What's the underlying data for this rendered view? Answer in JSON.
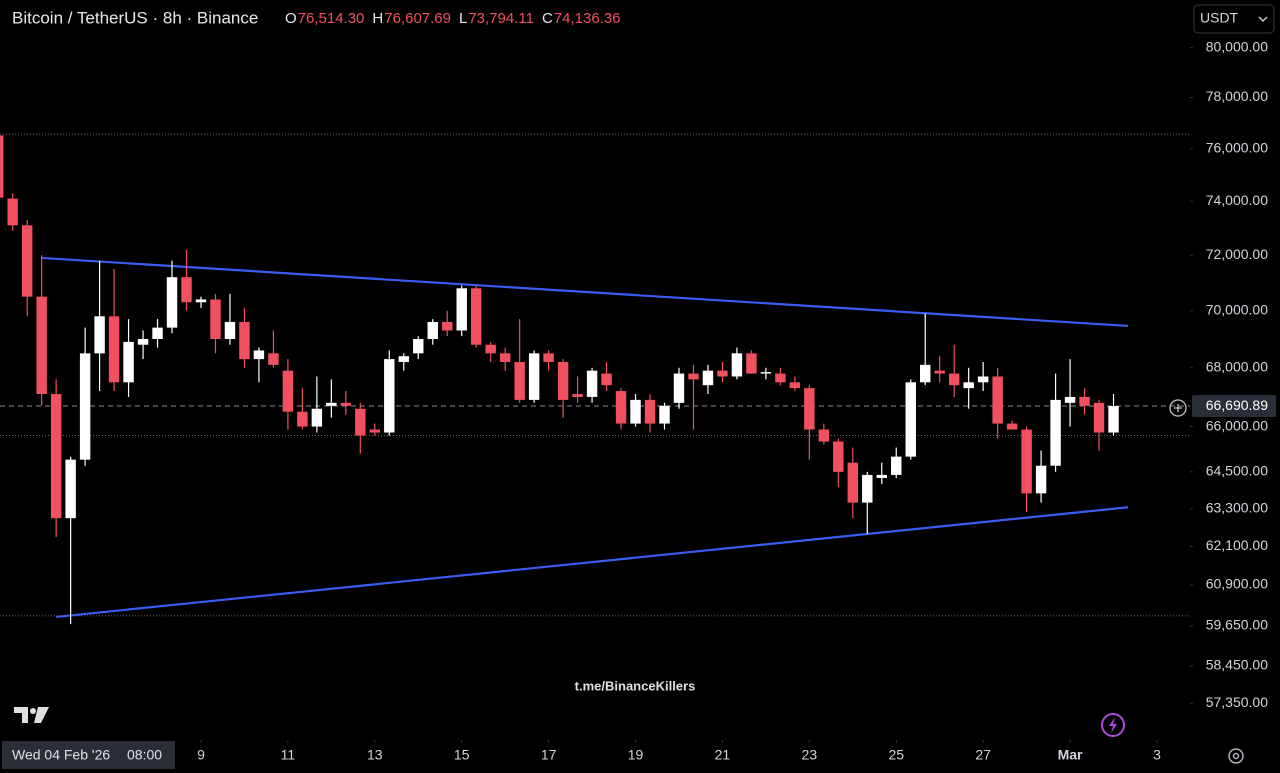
{
  "chart_data": {
    "type": "candlestick",
    "title": "Bitcoin / TetherUS · 8h · Binance",
    "ohlc_header": [
      {
        "label": "O",
        "value": "76,514.30"
      },
      {
        "label": "H",
        "value": "76,607.69"
      },
      {
        "label": "L",
        "value": "73,794.11"
      },
      {
        "label": "C",
        "value": "74,136.36"
      }
    ],
    "currency": "USDT",
    "watermark": "t.me/BinanceKillers",
    "crosshair_date": "Wed 04 Feb '26",
    "crosshair_time": "08:00",
    "last_price": 66690.89,
    "last_price_label": "66,690.89",
    "up_color": "#ffffff",
    "down_color": "#f0505f",
    "trendline_color": "#3a5cf2",
    "log_scale": true,
    "ylim": [
      56290,
      81960
    ],
    "xlim": [
      0.124,
      82.28
    ],
    "yticks": [
      {
        "value": 80000,
        "label": "80,000.00"
      },
      {
        "value": 78000,
        "label": "78,000.00"
      },
      {
        "value": 76000,
        "label": "76,000.00"
      },
      {
        "value": 74000,
        "label": "74,000.00"
      },
      {
        "value": 72000,
        "label": "72,000.00"
      },
      {
        "value": 70000,
        "label": "70,000.00"
      },
      {
        "value": 68000,
        "label": "68,000.00"
      },
      {
        "value": 66000,
        "label": "66,000.00"
      },
      {
        "value": 64500,
        "label": "64,500.00"
      },
      {
        "value": 63300,
        "label": "63,300.00"
      },
      {
        "value": 62100,
        "label": "62,100.00"
      },
      {
        "value": 60900,
        "label": "60,900.00"
      },
      {
        "value": 59650,
        "label": "59,650.00"
      },
      {
        "value": 58450,
        "label": "58,450.00"
      },
      {
        "value": 57350,
        "label": "57,350.00"
      }
    ],
    "xticks": [
      {
        "value": 14,
        "label": "9"
      },
      {
        "value": 20,
        "label": "11"
      },
      {
        "value": 26,
        "label": "13"
      },
      {
        "value": 32,
        "label": "15"
      },
      {
        "value": 38,
        "label": "17"
      },
      {
        "value": 44,
        "label": "19"
      },
      {
        "value": 50,
        "label": "21"
      },
      {
        "value": 56,
        "label": "23"
      },
      {
        "value": 62,
        "label": "25"
      },
      {
        "value": 68,
        "label": "27"
      },
      {
        "value": 74,
        "label": "Mar"
      },
      {
        "value": 80,
        "label": "3"
      }
    ],
    "horizontal_levels": [
      76570,
      65700,
      59950
    ],
    "trendlines": [
      [
        [
          3,
          71900
        ],
        [
          78,
          69460
        ]
      ],
      [
        [
          4,
          59920
        ],
        [
          78,
          63350
        ]
      ]
    ],
    "candles": [
      [
        76514.3,
        76607.69,
        73794.11,
        74136.36
      ],
      [
        74100,
        74300,
        72900,
        73100
      ],
      [
        73100,
        73300,
        69800,
        70500
      ],
      [
        70500,
        72000,
        66700,
        67100
      ],
      [
        67100,
        67600,
        62400,
        63000
      ],
      [
        63000,
        65000,
        59700,
        64900
      ],
      [
        64900,
        69400,
        64700,
        68500
      ],
      [
        68500,
        71800,
        67200,
        69800
      ],
      [
        69800,
        71500,
        67200,
        67500
      ],
      [
        67500,
        69700,
        67000,
        68900
      ],
      [
        68800,
        69300,
        68300,
        69000
      ],
      [
        69000,
        69700,
        68700,
        69400
      ],
      [
        69400,
        71800,
        69200,
        71200
      ],
      [
        71200,
        72200,
        70000,
        70300
      ],
      [
        70300,
        70500,
        70100,
        70400
      ],
      [
        70400,
        70600,
        68500,
        69000
      ],
      [
        69000,
        70600,
        68800,
        69600
      ],
      [
        69600,
        70100,
        68000,
        68300
      ],
      [
        68300,
        68700,
        67500,
        68600
      ],
      [
        68500,
        69300,
        68000,
        68100
      ],
      [
        67900,
        68300,
        65900,
        66500
      ],
      [
        66500,
        67300,
        65900,
        66000
      ],
      [
        66000,
        67700,
        65800,
        66600
      ],
      [
        66700,
        67600,
        66300,
        66800
      ],
      [
        66800,
        67200,
        66400,
        66700
      ],
      [
        66600,
        66800,
        65100,
        65700
      ],
      [
        65900,
        66100,
        65700,
        65800
      ],
      [
        65800,
        68600,
        65700,
        68300
      ],
      [
        68200,
        68500,
        67900,
        68400
      ],
      [
        68500,
        69100,
        68300,
        69000
      ],
      [
        69000,
        69700,
        68800,
        69600
      ],
      [
        69600,
        70000,
        69100,
        69300
      ],
      [
        69300,
        70900,
        69100,
        70800
      ],
      [
        70800,
        70900,
        68700,
        68800
      ],
      [
        68800,
        68900,
        68200,
        68500
      ],
      [
        68500,
        68700,
        67900,
        68200
      ],
      [
        68200,
        69700,
        66800,
        66900
      ],
      [
        66900,
        68600,
        66800,
        68500
      ],
      [
        68500,
        68600,
        67900,
        68200
      ],
      [
        68200,
        68300,
        66300,
        66900
      ],
      [
        67100,
        67700,
        66800,
        67000
      ],
      [
        67000,
        68000,
        66800,
        67900
      ],
      [
        67800,
        68200,
        67200,
        67400
      ],
      [
        67200,
        67300,
        65900,
        66100
      ],
      [
        66100,
        67100,
        66000,
        66900
      ],
      [
        66900,
        67100,
        65800,
        66100
      ],
      [
        66100,
        66800,
        65900,
        66700
      ],
      [
        66800,
        68000,
        66600,
        67800
      ],
      [
        67800,
        68100,
        65900,
        67600
      ],
      [
        67400,
        68100,
        67100,
        67900
      ],
      [
        67900,
        68200,
        67500,
        67700
      ],
      [
        67700,
        68700,
        67600,
        68500
      ],
      [
        68500,
        68600,
        67800,
        67800
      ],
      [
        67800,
        68000,
        67600,
        67850
      ],
      [
        67800,
        68000,
        67400,
        67500
      ],
      [
        67500,
        67700,
        67200,
        67300
      ],
      [
        67300,
        67400,
        64900,
        65900
      ],
      [
        65900,
        66100,
        65400,
        65500
      ],
      [
        65500,
        65600,
        64000,
        64500
      ],
      [
        64800,
        65300,
        63000,
        63500
      ],
      [
        63500,
        64500,
        62500,
        64400
      ],
      [
        64300,
        64800,
        64100,
        64400
      ],
      [
        64400,
        65300,
        64300,
        65000
      ],
      [
        65000,
        67600,
        64900,
        67500
      ],
      [
        67500,
        69900,
        67400,
        68100
      ],
      [
        67900,
        68400,
        67500,
        67800
      ],
      [
        67800,
        68800,
        67000,
        67400
      ],
      [
        67300,
        68000,
        66600,
        67500
      ],
      [
        67500,
        68200,
        67200,
        67700
      ],
      [
        67700,
        68000,
        65600,
        66100
      ],
      [
        66100,
        66200,
        65900,
        65900
      ],
      [
        65900,
        66000,
        63200,
        63800
      ],
      [
        63800,
        65200,
        63500,
        64700
      ],
      [
        64700,
        67800,
        64500,
        66900
      ],
      [
        66800,
        68300,
        66000,
        67000
      ],
      [
        67000,
        67300,
        66400,
        66700
      ],
      [
        66800,
        66900,
        65200,
        65800
      ],
      [
        65800,
        67100,
        65700,
        66690.89
      ]
    ]
  }
}
